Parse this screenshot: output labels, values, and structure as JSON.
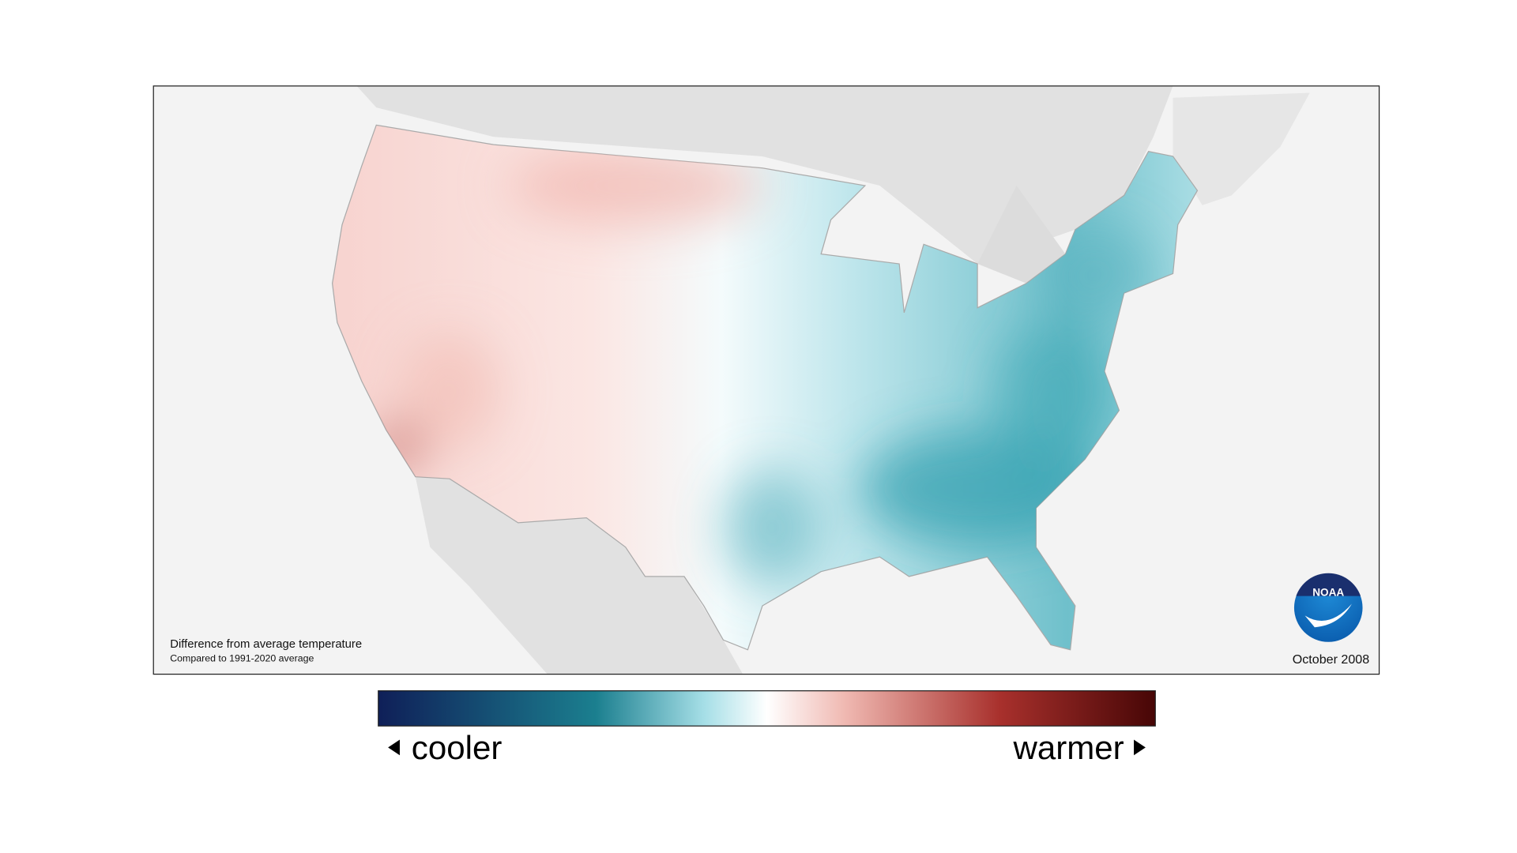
{
  "map": {
    "caption": "Difference from average temperature",
    "subcaption": "Compared to 1991-2020 average",
    "date": "October 2008",
    "logo": "NOAA"
  },
  "legend": {
    "low": "cooler",
    "high": "warmer"
  }
}
